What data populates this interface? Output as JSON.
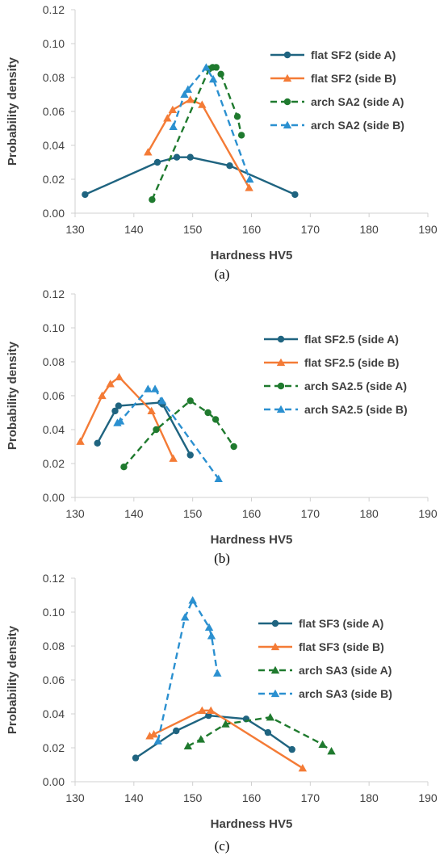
{
  "chart_data": [
    {
      "type": "line",
      "caption": "(a)",
      "xlabel": "Hardness HV5",
      "ylabel": "Probability density",
      "xlim": [
        130,
        190
      ],
      "ylim": [
        0,
        0.12
      ],
      "xticks": [
        "130",
        "140",
        "150",
        "160",
        "170",
        "180",
        "190"
      ],
      "yticks": [
        "0.00",
        "0.02",
        "0.04",
        "0.06",
        "0.08",
        "0.10",
        "0.12"
      ],
      "grid": false,
      "legend_position": "right",
      "series": [
        {
          "name": "flat SF2 (side A)",
          "color": "#1f6480",
          "marker": "circle",
          "dash": "solid",
          "x": [
            131.7,
            144.0,
            147.3,
            149.6,
            156.3,
            167.4
          ],
          "y": [
            0.011,
            0.03,
            0.033,
            0.033,
            0.028,
            0.011
          ]
        },
        {
          "name": "flat SF2 (side B)",
          "color": "#f47b36",
          "marker": "triangle",
          "dash": "solid",
          "x": [
            142.4,
            145.7,
            146.6,
            149.6,
            151.6,
            159.6
          ],
          "y": [
            0.036,
            0.056,
            0.061,
            0.067,
            0.064,
            0.015
          ]
        },
        {
          "name": "arch SA2 (side A)",
          "color": "#1f7a2e",
          "marker": "circle",
          "dash": "dashed",
          "x": [
            143.1,
            152.8,
            153.4,
            154.0,
            154.8,
            157.6,
            158.3
          ],
          "y": [
            0.008,
            0.085,
            0.086,
            0.086,
            0.082,
            0.057,
            0.046
          ]
        },
        {
          "name": "arch SA2 (side B)",
          "color": "#2b90d0",
          "marker": "triangle",
          "dash": "dashed",
          "x": [
            146.7,
            148.6,
            149.2,
            152.3,
            153.5,
            159.7
          ],
          "y": [
            0.051,
            0.07,
            0.073,
            0.086,
            0.079,
            0.02
          ]
        }
      ]
    },
    {
      "type": "line",
      "caption": "(b)",
      "xlabel": "Hardness HV5",
      "ylabel": "Probability density",
      "xlim": [
        130,
        190
      ],
      "ylim": [
        0,
        0.12
      ],
      "xticks": [
        "130",
        "140",
        "150",
        "160",
        "170",
        "180",
        "190"
      ],
      "yticks": [
        "0.00",
        "0.02",
        "0.04",
        "0.06",
        "0.08",
        "0.10",
        "0.12"
      ],
      "grid": false,
      "legend_position": "right",
      "series": [
        {
          "name": "flat SF2.5 (side A)",
          "color": "#1f6480",
          "marker": "circle",
          "dash": "solid",
          "x": [
            133.8,
            136.8,
            137.4,
            144.6,
            144.9,
            149.6
          ],
          "y": [
            0.032,
            0.051,
            0.054,
            0.056,
            0.055,
            0.025
          ]
        },
        {
          "name": "flat SF2.5 (side B)",
          "color": "#f47b36",
          "marker": "triangle",
          "dash": "solid",
          "x": [
            130.9,
            134.6,
            136.0,
            137.5,
            143.0,
            146.7
          ],
          "y": [
            0.033,
            0.06,
            0.067,
            0.071,
            0.051,
            0.023
          ]
        },
        {
          "name": "arch SA2.5 (side A)",
          "color": "#1f7a2e",
          "marker": "circle",
          "dash": "dashed",
          "x": [
            138.3,
            143.8,
            149.6,
            152.6,
            153.9,
            157.0
          ],
          "y": [
            0.018,
            0.04,
            0.057,
            0.05,
            0.046,
            0.03
          ]
        },
        {
          "name": "arch SA2.5 (side B)",
          "color": "#2b90d0",
          "marker": "triangle",
          "dash": "dashed",
          "x": [
            137.2,
            137.7,
            142.4,
            143.6,
            144.8,
            154.4
          ],
          "y": [
            0.044,
            0.045,
            0.064,
            0.064,
            0.057,
            0.011
          ]
        }
      ]
    },
    {
      "type": "line",
      "caption": "(c)",
      "xlabel": "Hardness HV5",
      "ylabel": "Probability density",
      "xlim": [
        130,
        190
      ],
      "ylim": [
        0,
        0.12
      ],
      "xticks": [
        "130",
        "140",
        "150",
        "160",
        "170",
        "180",
        "190"
      ],
      "yticks": [
        "0.00",
        "0.02",
        "0.04",
        "0.06",
        "0.08",
        "0.10",
        "0.12"
      ],
      "grid": false,
      "legend_position": "right",
      "series": [
        {
          "name": "flat SF3 (side A)",
          "color": "#1f6480",
          "marker": "circle",
          "dash": "solid",
          "x": [
            140.3,
            147.2,
            152.7,
            159.1,
            162.8,
            166.9
          ],
          "y": [
            0.014,
            0.03,
            0.039,
            0.037,
            0.029,
            0.019
          ]
        },
        {
          "name": "flat SF3 (side B)",
          "color": "#f47b36",
          "marker": "triangle",
          "dash": "solid",
          "x": [
            142.7,
            143.4,
            151.6,
            153.1,
            168.7
          ],
          "y": [
            0.027,
            0.028,
            0.042,
            0.042,
            0.008
          ]
        },
        {
          "name": "arch SA3 (side A)",
          "color": "#1f7a2e",
          "marker": "triangle",
          "dash": "dashed",
          "x": [
            149.2,
            151.4,
            155.6,
            163.2,
            172.1,
            173.6
          ],
          "y": [
            0.021,
            0.025,
            0.034,
            0.038,
            0.022,
            0.018
          ]
        },
        {
          "name": "arch SA3 (side B)",
          "color": "#2b90d0",
          "marker": "triangle",
          "dash": "dashed",
          "x": [
            144.1,
            148.7,
            150.0,
            152.8,
            153.2,
            154.2
          ],
          "y": [
            0.024,
            0.097,
            0.107,
            0.091,
            0.086,
            0.064
          ]
        }
      ]
    }
  ]
}
